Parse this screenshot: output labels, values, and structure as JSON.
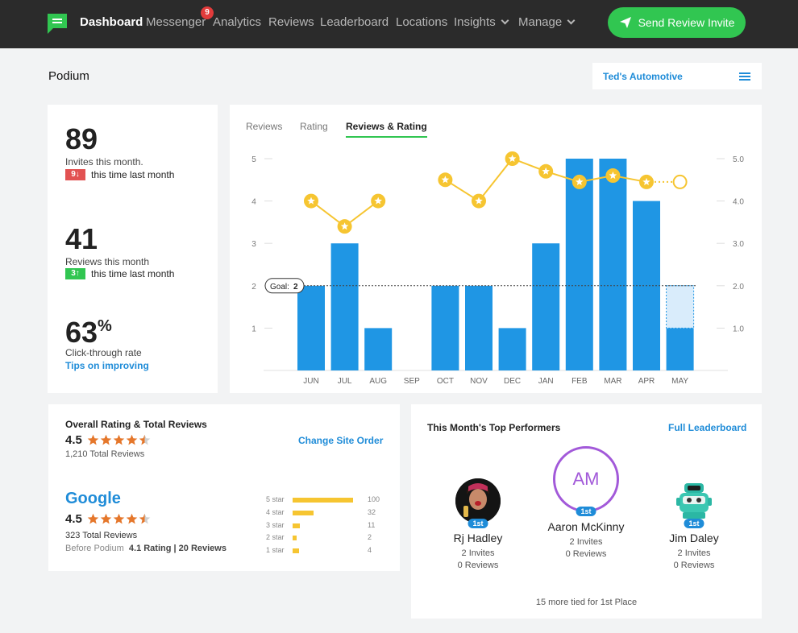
{
  "nav": {
    "items": [
      {
        "label": "Dashboard",
        "active": true
      },
      {
        "label": "Messenger",
        "badge": "9"
      },
      {
        "label": "Analytics"
      },
      {
        "label": "Reviews"
      },
      {
        "label": "Leaderboard"
      },
      {
        "label": "Locations"
      },
      {
        "label": "Insights",
        "dropdown": true
      },
      {
        "label": "Manage",
        "dropdown": true
      }
    ],
    "cta_label": "Send Review Invite",
    "accent": "#31c651"
  },
  "header": {
    "title": "Podium",
    "location": "Ted's Automotive"
  },
  "stats": {
    "invites": {
      "value": "89",
      "label": "Invites this month.",
      "delta": "9",
      "direction": "down",
      "compare": "this time last month"
    },
    "reviews": {
      "value": "41",
      "label": "Reviews this month",
      "delta": "3",
      "direction": "up",
      "compare": "this time last month"
    },
    "ctr": {
      "value": "63",
      "unit": "%",
      "label": "Click-through rate",
      "link": "Tips on improving"
    }
  },
  "chart": {
    "tabs": [
      {
        "label": "Reviews"
      },
      {
        "label": "Rating"
      },
      {
        "label": "Reviews & Rating",
        "active": true
      }
    ],
    "goal_label": "Goal:",
    "goal_value": "2"
  },
  "chart_data": {
    "type": "bar",
    "categories": [
      "JUN",
      "JUL",
      "AUG",
      "SEP",
      "OCT",
      "NOV",
      "DEC",
      "JAN",
      "FEB",
      "MAR",
      "APR",
      "MAY"
    ],
    "series": [
      {
        "values": [
          2,
          3,
          1,
          0,
          2,
          2,
          1,
          3,
          5,
          5,
          4,
          1
        ]
      },
      {
        "type": "line",
        "axis": "right",
        "values": [
          4.0,
          3.4,
          4.0,
          null,
          4.5,
          4.0,
          5.0,
          4.7,
          4.45,
          4.6,
          4.45,
          4.45
        ]
      }
    ],
    "projection": {
      "category": "MAY",
      "value": 2
    },
    "goal": 2,
    "left_ticks": [
      "1",
      "2",
      "3",
      "4",
      "5"
    ],
    "right_ticks": [
      "1.0",
      "2.0",
      "3.0",
      "4.0",
      "5.0"
    ],
    "ylim": [
      0,
      5
    ],
    "y2lim": [
      0,
      5
    ],
    "bar_color": "#1f96e4",
    "line_color": "#f6c531"
  },
  "overall": {
    "title": "Overall Rating & Total Reviews",
    "score": "4.5",
    "stars": 4.5,
    "total": "1,210 Total Reviews",
    "link": "Change Site Order"
  },
  "google": {
    "name": "Google",
    "score": "4.5",
    "stars": 4.5,
    "total": "323 Total Reviews",
    "before_label": "Before Podium",
    "before_value": "4.1 Rating | 20 Reviews",
    "distribution": [
      {
        "label": "5 star",
        "count": "100",
        "fraction": 1.0
      },
      {
        "label": "4 star",
        "count": "32",
        "fraction": 0.34
      },
      {
        "label": "3 star",
        "count": "11",
        "fraction": 0.12
      },
      {
        "label": "2 star",
        "count": "2",
        "fraction": 0.06
      },
      {
        "label": "1 star",
        "count": "4",
        "fraction": 0.1
      }
    ]
  },
  "performers": {
    "title": "This Month's Top Performers",
    "link": "Full Leaderboard",
    "people": [
      {
        "name": "Rj Hadley",
        "invites": "2 Invites",
        "reviews": "0 Reviews",
        "place": "1st"
      },
      {
        "name": "Aaron McKinny",
        "initials": "AM",
        "invites": "2 Invites",
        "reviews": "0 Reviews",
        "place": "1st"
      },
      {
        "name": "Jim Daley",
        "invites": "2 Invites",
        "reviews": "0 Reviews",
        "place": "1st"
      }
    ],
    "footer": "15 more tied for 1st Place"
  }
}
